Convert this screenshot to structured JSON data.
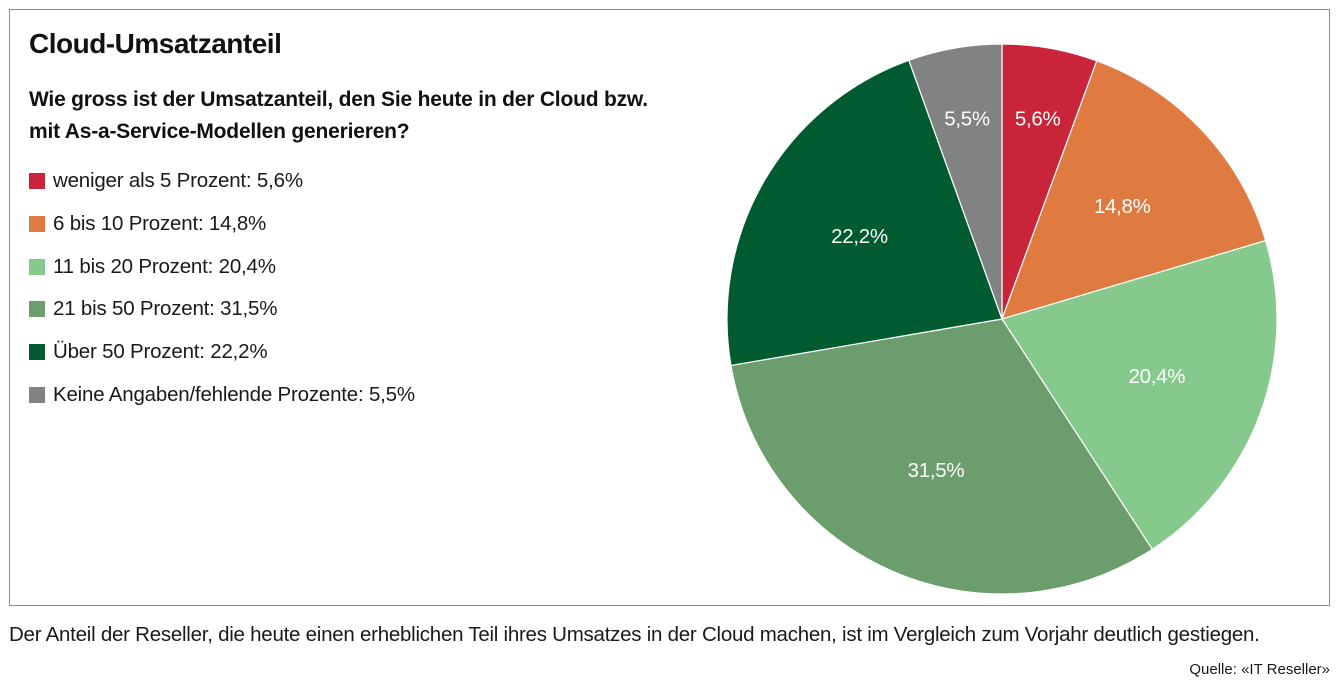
{
  "title": "Cloud-Umsatzanteil",
  "subtitle": "Wie gross ist der Umsatzanteil, den Sie heute in der Cloud bzw. mit As-a-Service-Modellen generieren?",
  "caption": "Der Anteil der Reseller, die heute einen erheblichen Teil ihres Umsatzes in der Cloud machen, ist im Vergleich zum Vorjahr deutlich gestiegen.",
  "source": "Quelle: «IT Reseller»",
  "chart_data": {
    "type": "pie",
    "title": "Cloud-Umsatzanteil",
    "unit": "%",
    "slices": [
      {
        "legend": "weniger als 5 Prozent: 5,6%",
        "label": "5,6%",
        "value": 5.6,
        "color": "#c9243a"
      },
      {
        "legend": "6 bis 10 Prozent: 14,8%",
        "label": "14,8%",
        "value": 14.8,
        "color": "#df7a41"
      },
      {
        "legend": "11 bis 20 Prozent: 20,4%",
        "label": "20,4%",
        "value": 20.4,
        "color": "#86c98d"
      },
      {
        "legend": "21 bis 50 Prozent: 31,5%",
        "label": "31,5%",
        "value": 31.5,
        "color": "#6b9d6d"
      },
      {
        "legend": "Über 50 Prozent: 22,2%",
        "label": "22,2%",
        "value": 22.2,
        "color": "#005b30"
      },
      {
        "legend": "Keine Angaben/fehlende Prozente: 5,5%",
        "label": "5,5%",
        "value": 5.5,
        "color": "#808382"
      }
    ],
    "start": "12 o'clock",
    "direction": "clockwise",
    "legend_position": "left"
  }
}
